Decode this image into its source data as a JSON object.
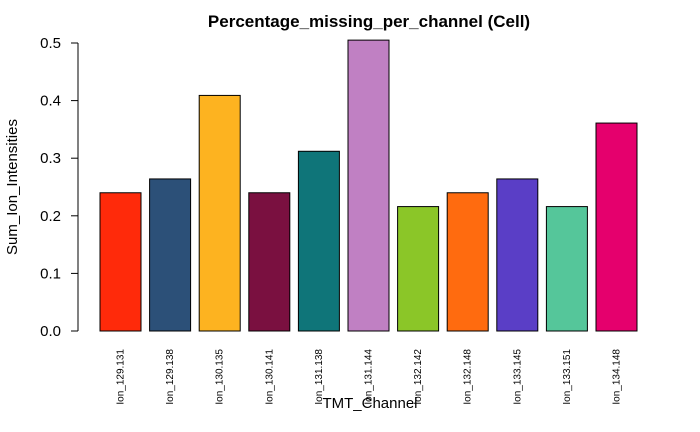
{
  "chart_data": {
    "type": "bar",
    "title": "Percentage_missing_per_channel (Cell)",
    "xlabel": "TMT_Channel",
    "ylabel": "Sum_Ion_Intensities",
    "ylim": [
      0,
      0.5
    ],
    "yticks": [
      0.0,
      0.1,
      0.2,
      0.3,
      0.4,
      0.5
    ],
    "ytick_labels": [
      "0.0",
      "0.1",
      "0.2",
      "0.3",
      "0.4",
      "0.5"
    ],
    "categories": [
      "Ion_129.131",
      "Ion_129.138",
      "Ion_130.135",
      "Ion_130.141",
      "Ion_131.138",
      "Ion_131.144",
      "Ion_132.142",
      "Ion_132.148",
      "Ion_133.145",
      "Ion_133.151",
      "Ion_134.148"
    ],
    "values": [
      0.24,
      0.264,
      0.409,
      0.24,
      0.312,
      0.505,
      0.216,
      0.24,
      0.264,
      0.216,
      0.361
    ],
    "colors": [
      "#ff2a0a",
      "#2c5078",
      "#fdb320",
      "#7a1040",
      "#0f7579",
      "#c080c3",
      "#8bc628",
      "#ff6b0f",
      "#5a3ec6",
      "#55c69a",
      "#e5006d"
    ],
    "grid": false,
    "legend": "none"
  }
}
